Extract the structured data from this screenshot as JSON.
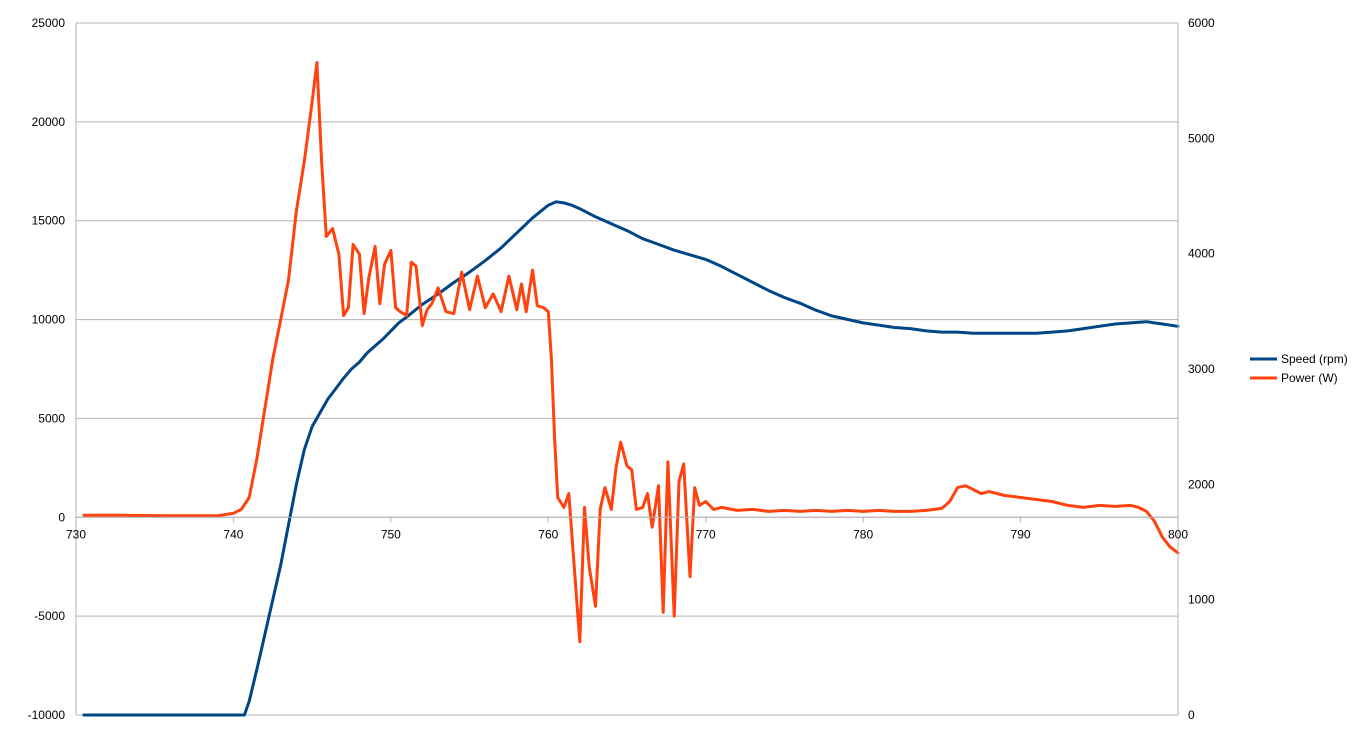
{
  "chart_data": {
    "type": "line",
    "title": "",
    "xlabel": "",
    "ylabel": "",
    "y2label": "",
    "xlim": [
      730,
      800
    ],
    "ylim_left": [
      -10000,
      25000
    ],
    "ylim_right": [
      0,
      6000
    ],
    "x_ticks": [
      "730",
      "740",
      "750",
      "760",
      "770",
      "780",
      "790",
      "800"
    ],
    "y_left_ticks": [
      "-10000",
      "-5000",
      "0",
      "5000",
      "10000",
      "15000",
      "20000",
      "25000"
    ],
    "y_right_ticks": [
      "0",
      "1000",
      "2000",
      "3000",
      "4000",
      "5000",
      "6000"
    ],
    "grid": "horizontal",
    "legend_position": "right",
    "series": [
      {
        "name": "Speed (rpm)",
        "axis": "right",
        "color": "#004586",
        "points": [
          [
            730.5,
            0
          ],
          [
            734,
            0
          ],
          [
            738,
            0
          ],
          [
            740,
            0
          ],
          [
            740.7,
            0
          ],
          [
            741,
            120
          ],
          [
            741.5,
            400
          ],
          [
            742,
            700
          ],
          [
            742.5,
            1000
          ],
          [
            743,
            1300
          ],
          [
            743.5,
            1650
          ],
          [
            744,
            2000
          ],
          [
            744.5,
            2300
          ],
          [
            745,
            2500
          ],
          [
            745.5,
            2620
          ],
          [
            746,
            2740
          ],
          [
            746.5,
            2830
          ],
          [
            747,
            2920
          ],
          [
            747.5,
            3000
          ],
          [
            748,
            3060
          ],
          [
            748.5,
            3140
          ],
          [
            749,
            3200
          ],
          [
            749.5,
            3260
          ],
          [
            750,
            3330
          ],
          [
            750.5,
            3400
          ],
          [
            751,
            3450
          ],
          [
            752,
            3560
          ],
          [
            753,
            3650
          ],
          [
            754,
            3750
          ],
          [
            755,
            3840
          ],
          [
            756,
            3940
          ],
          [
            757,
            4050
          ],
          [
            758,
            4180
          ],
          [
            759,
            4310
          ],
          [
            760,
            4420
          ],
          [
            760.5,
            4450
          ],
          [
            761,
            4440
          ],
          [
            761.5,
            4420
          ],
          [
            762,
            4390
          ],
          [
            763,
            4320
          ],
          [
            764,
            4260
          ],
          [
            765,
            4200
          ],
          [
            766,
            4130
          ],
          [
            767,
            4080
          ],
          [
            768,
            4030
          ],
          [
            769,
            3990
          ],
          [
            770,
            3950
          ],
          [
            771,
            3890
          ],
          [
            772,
            3820
          ],
          [
            773,
            3750
          ],
          [
            774,
            3680
          ],
          [
            775,
            3620
          ],
          [
            776,
            3570
          ],
          [
            777,
            3510
          ],
          [
            778,
            3460
          ],
          [
            779,
            3430
          ],
          [
            780,
            3400
          ],
          [
            781,
            3380
          ],
          [
            782,
            3360
          ],
          [
            783,
            3350
          ],
          [
            784,
            3330
          ],
          [
            785,
            3320
          ],
          [
            786,
            3320
          ],
          [
            787,
            3310
          ],
          [
            788,
            3310
          ],
          [
            789,
            3310
          ],
          [
            790,
            3310
          ],
          [
            791,
            3310
          ],
          [
            792,
            3320
          ],
          [
            793,
            3330
          ],
          [
            794,
            3350
          ],
          [
            795,
            3370
          ],
          [
            796,
            3390
          ],
          [
            797,
            3400
          ],
          [
            798,
            3410
          ],
          [
            799,
            3390
          ],
          [
            800,
            3370
          ]
        ]
      },
      {
        "name": "Power (W)",
        "axis": "left",
        "color": "#ff420e",
        "points": [
          [
            730.5,
            100
          ],
          [
            733,
            100
          ],
          [
            736,
            80
          ],
          [
            739,
            80
          ],
          [
            740,
            200
          ],
          [
            740.5,
            400
          ],
          [
            741,
            1000
          ],
          [
            741.5,
            3000
          ],
          [
            742,
            5500
          ],
          [
            742.5,
            8000
          ],
          [
            743,
            10000
          ],
          [
            743.5,
            12000
          ],
          [
            744,
            15500
          ],
          [
            744.5,
            18000
          ],
          [
            745,
            21000
          ],
          [
            745.3,
            23000
          ],
          [
            745.6,
            18000
          ],
          [
            745.9,
            14200
          ],
          [
            746.3,
            14600
          ],
          [
            746.7,
            13300
          ],
          [
            747,
            10200
          ],
          [
            747.3,
            10600
          ],
          [
            747.6,
            13800
          ],
          [
            748,
            13300
          ],
          [
            748.3,
            10300
          ],
          [
            748.6,
            12100
          ],
          [
            749,
            13700
          ],
          [
            749.3,
            10800
          ],
          [
            749.6,
            12800
          ],
          [
            750,
            13500
          ],
          [
            750.3,
            10600
          ],
          [
            750.6,
            10400
          ],
          [
            751,
            10200
          ],
          [
            751.3,
            12900
          ],
          [
            751.6,
            12700
          ],
          [
            752,
            9700
          ],
          [
            752.3,
            10500
          ],
          [
            752.6,
            10800
          ],
          [
            753,
            11600
          ],
          [
            753.5,
            10400
          ],
          [
            754,
            10300
          ],
          [
            754.5,
            12400
          ],
          [
            755,
            10500
          ],
          [
            755.5,
            12200
          ],
          [
            756,
            10600
          ],
          [
            756.5,
            11300
          ],
          [
            757,
            10400
          ],
          [
            757.5,
            12200
          ],
          [
            758,
            10500
          ],
          [
            758.3,
            11800
          ],
          [
            758.6,
            10400
          ],
          [
            759,
            12500
          ],
          [
            759.3,
            10700
          ],
          [
            759.7,
            10600
          ],
          [
            760,
            10400
          ],
          [
            760.2,
            8000
          ],
          [
            760.4,
            4000
          ],
          [
            760.6,
            1000
          ],
          [
            761,
            500
          ],
          [
            761.3,
            1200
          ],
          [
            761.6,
            -2000
          ],
          [
            762,
            -6300
          ],
          [
            762.3,
            500
          ],
          [
            762.6,
            -2500
          ],
          [
            763,
            -4500
          ],
          [
            763.3,
            400
          ],
          [
            763.6,
            1500
          ],
          [
            764,
            400
          ],
          [
            764.3,
            2500
          ],
          [
            764.6,
            3800
          ],
          [
            765,
            2600
          ],
          [
            765.3,
            2400
          ],
          [
            765.6,
            400
          ],
          [
            766,
            500
          ],
          [
            766.3,
            1200
          ],
          [
            766.6,
            -500
          ],
          [
            767,
            1600
          ],
          [
            767.3,
            -4800
          ],
          [
            767.6,
            2800
          ],
          [
            768,
            -5000
          ],
          [
            768.3,
            1800
          ],
          [
            768.6,
            2700
          ],
          [
            769,
            -3000
          ],
          [
            769.3,
            1500
          ],
          [
            769.6,
            600
          ],
          [
            770,
            800
          ],
          [
            770.5,
            400
          ],
          [
            771,
            500
          ],
          [
            772,
            350
          ],
          [
            773,
            400
          ],
          [
            774,
            300
          ],
          [
            775,
            350
          ],
          [
            776,
            300
          ],
          [
            777,
            350
          ],
          [
            778,
            300
          ],
          [
            779,
            350
          ],
          [
            780,
            300
          ],
          [
            781,
            350
          ],
          [
            782,
            300
          ],
          [
            783,
            300
          ],
          [
            784,
            350
          ],
          [
            785,
            450
          ],
          [
            785.5,
            800
          ],
          [
            786,
            1500
          ],
          [
            786.5,
            1600
          ],
          [
            787,
            1400
          ],
          [
            787.5,
            1200
          ],
          [
            788,
            1300
          ],
          [
            789,
            1100
          ],
          [
            790,
            1000
          ],
          [
            791,
            900
          ],
          [
            792,
            800
          ],
          [
            793,
            600
          ],
          [
            794,
            500
          ],
          [
            795,
            600
          ],
          [
            796,
            550
          ],
          [
            797,
            600
          ],
          [
            797.5,
            500
          ],
          [
            798,
            300
          ],
          [
            798.5,
            -200
          ],
          [
            799,
            -1000
          ],
          [
            799.5,
            -1500
          ],
          [
            800,
            -1800
          ]
        ]
      }
    ]
  }
}
